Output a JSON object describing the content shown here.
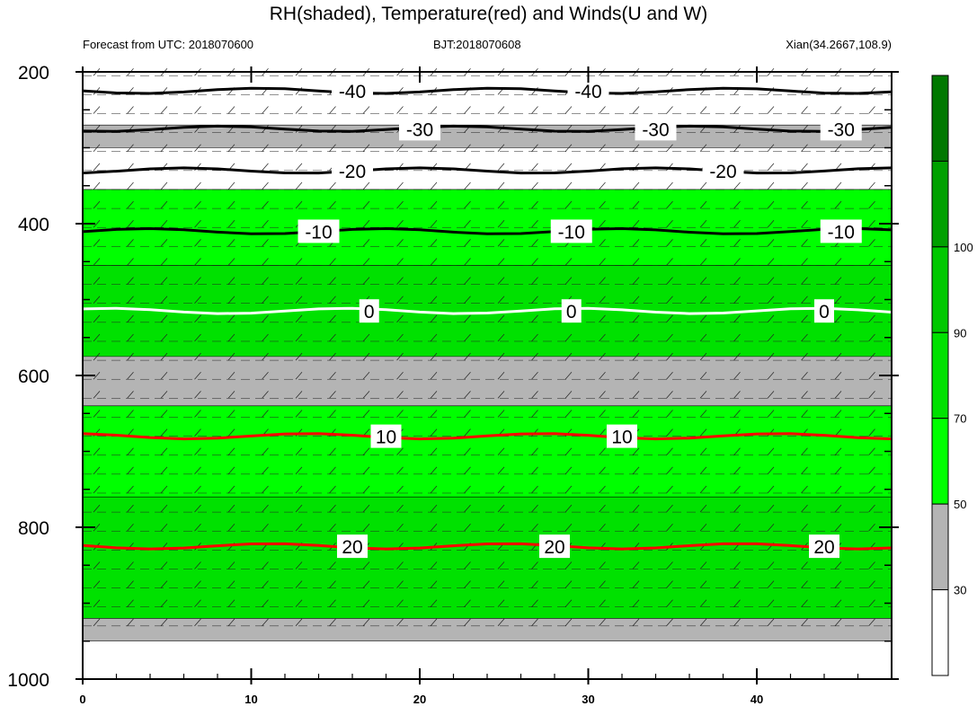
{
  "chart_data": {
    "type": "heatmap",
    "title": "RH(shaded), Temperature(red) and Winds(U and W)",
    "left_string": "Forecast from UTC: 2018070600",
    "center_string": "BJT:2018070608",
    "right_string": "Xian(34.2667,108.9)",
    "x_ticks": [
      "0",
      "10",
      "20",
      "30",
      "40"
    ],
    "x_tick_values": [
      0,
      10,
      20,
      30,
      40
    ],
    "y_ticks": [
      "200",
      "400",
      "600",
      "800",
      "1000"
    ],
    "y_tick_values": [
      200,
      400,
      600,
      800,
      1000
    ],
    "xlim": [
      0,
      48
    ],
    "ylim": [
      1000,
      200
    ],
    "rh_levels": [
      30,
      50,
      70,
      90,
      100
    ],
    "rh_level_labels": [
      "30",
      "50",
      "70",
      "90",
      "100"
    ],
    "rh_colors": [
      "#ffffff",
      "#b4b4b4",
      "#00ff00",
      "#00e100",
      "#00c800",
      "#00a000",
      "#007800"
    ],
    "rh_bands": [
      {
        "p_top": 200,
        "p_bottom": 270,
        "rh_class": "white",
        "color": "#ffffff"
      },
      {
        "p_top": 270,
        "p_bottom": 300,
        "rh_class": "gray",
        "color": "#b4b4b4"
      },
      {
        "p_top": 300,
        "p_bottom": 355,
        "rh_class": "white",
        "color": "#ffffff"
      },
      {
        "p_top": 355,
        "p_bottom": 455,
        "rh_class": "50-70",
        "color": "#00ff00"
      },
      {
        "p_top": 455,
        "p_bottom": 575,
        "rh_class": "70-90",
        "color": "#00e100"
      },
      {
        "p_top": 575,
        "p_bottom": 640,
        "rh_class": "gray",
        "color": "#b4b4b4"
      },
      {
        "p_top": 640,
        "p_bottom": 760,
        "rh_class": "50-70",
        "color": "#00ff00"
      },
      {
        "p_top": 760,
        "p_bottom": 920,
        "rh_class": "70-90",
        "color": "#00e100"
      },
      {
        "p_top": 920,
        "p_bottom": 950,
        "rh_class": "gray",
        "color": "#b4b4b4"
      }
    ],
    "temperature_contours": [
      {
        "value": -40,
        "label": "-40",
        "p": 225,
        "color": "#000000",
        "label_x": [
          16,
          30
        ]
      },
      {
        "value": -30,
        "label": "-30",
        "p": 275,
        "color": "#000000",
        "label_x": [
          20,
          34,
          45
        ]
      },
      {
        "value": -20,
        "label": "-20",
        "p": 330,
        "color": "#000000",
        "label_x": [
          16,
          38
        ]
      },
      {
        "value": -10,
        "label": "-10",
        "p": 410,
        "color": "#000000",
        "label_x": [
          14,
          29,
          45
        ]
      },
      {
        "value": 0,
        "label": "0",
        "p": 515,
        "color": "#ffffff",
        "label_x": [
          17,
          29,
          44
        ]
      },
      {
        "value": 10,
        "label": "10",
        "p": 680,
        "color": "#ff0000",
        "label_x": [
          18,
          32
        ]
      },
      {
        "value": 20,
        "label": "20",
        "p": 825,
        "color": "#ff0000",
        "label_x": [
          16,
          28,
          44
        ]
      }
    ],
    "wind_barbs": "U and W",
    "legend": "right colorbar"
  }
}
